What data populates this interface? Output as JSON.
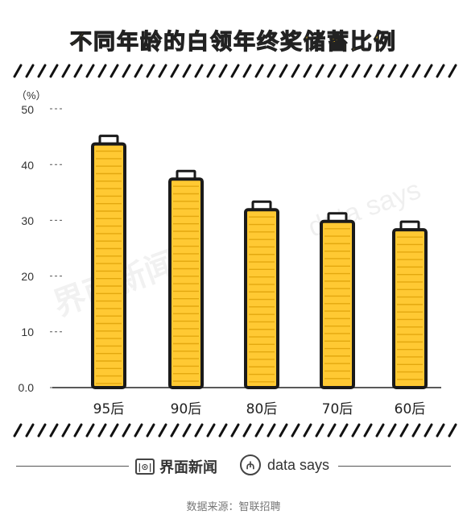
{
  "chart_data": {
    "type": "bar",
    "title": "不同年龄的白领年终奖储蓄比例",
    "unit_label": "（%）",
    "categories": [
      "95后",
      "90后",
      "80后",
      "70后",
      "60后"
    ],
    "values": [
      43.7,
      37.4,
      31.9,
      29.8,
      28.3
    ],
    "ylim": [
      0,
      50
    ],
    "yticks": [
      "50",
      "40",
      "30",
      "20",
      "10",
      "0.0"
    ],
    "xlabel": "",
    "ylabel": "",
    "grid": false,
    "colors": {
      "bar_fill": "#ffc933",
      "coin_line": "#e3a80f",
      "outline": "#1a1a1a",
      "title": "#ffc61a"
    }
  },
  "footer": {
    "brand_jiemian": "界面新闻",
    "brand_jiemian_icon": "jiemian-logo-icon",
    "brand_datasays": "data says",
    "brand_datasays_icon": "datasays-logo-icon",
    "source": "数据来源：智联招聘"
  },
  "watermarks": {
    "left": "界面新闻",
    "right": "data says"
  }
}
